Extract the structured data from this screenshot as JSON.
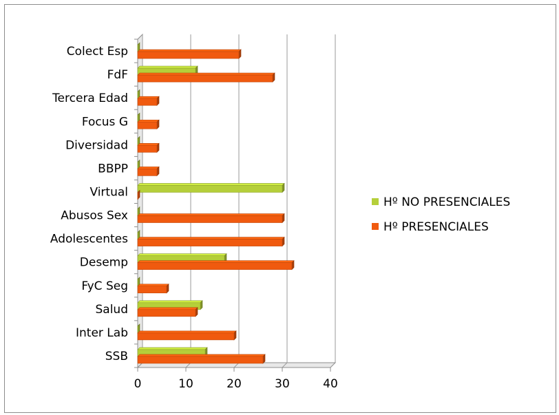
{
  "chart_data": {
    "type": "bar",
    "orientation": "horizontal",
    "style": "3d",
    "categories": [
      "Colect Esp",
      "FdF",
      "Tercera Edad",
      "Focus G",
      "Diversidad",
      "BBPP",
      "Virtual",
      "Abusos Sex",
      "Adolescentes",
      "Desemp",
      "FyC Seg",
      "Salud",
      "Inter Lab",
      "SSB"
    ],
    "series": [
      {
        "name": "Hº NO PRESENCIALES",
        "color": "#b5cf3a",
        "values": [
          0,
          12,
          0,
          0,
          0,
          0,
          30,
          0,
          0,
          18,
          0,
          13,
          0,
          14
        ]
      },
      {
        "name": "Hº PRESENCIALES",
        "color": "#f05a0f",
        "values": [
          21,
          28,
          4,
          4,
          4,
          4,
          0,
          30,
          30,
          32,
          6,
          12,
          20,
          26
        ]
      }
    ],
    "xlim": [
      0,
      40
    ],
    "xticks": [
      "0",
      "10",
      "20",
      "30",
      "40"
    ],
    "grid": true,
    "legend_position": "right"
  }
}
